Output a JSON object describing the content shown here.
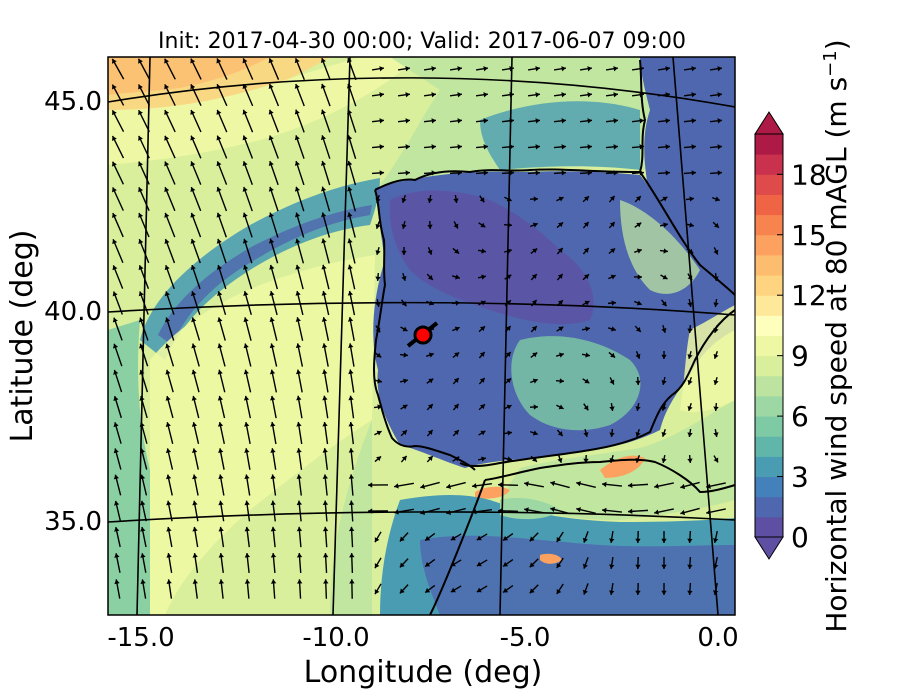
{
  "title": "Init: 2017-04-30 00:00; Valid: 2017-06-07 09:00",
  "x_axis": {
    "label": "Longitude (deg)",
    "ticks": [
      {
        "value": -15.0,
        "label": "-15.0"
      },
      {
        "value": -10.0,
        "label": "-10.0"
      },
      {
        "value": -5.0,
        "label": "-5.0"
      },
      {
        "value": 0.0,
        "label": "0.0"
      }
    ]
  },
  "y_axis": {
    "label": "Latitude (deg)",
    "ticks": [
      {
        "value": 35.0,
        "label": "35.0"
      },
      {
        "value": 40.0,
        "label": "40.0"
      },
      {
        "value": 45.0,
        "label": "45.0"
      }
    ]
  },
  "colorbar": {
    "label_main": "Horizontal wind speed at 80 mAGL (m s",
    "label_exp": "−1",
    "label_close": ")",
    "min": 0,
    "max": 20,
    "ticks": [
      {
        "value": 0,
        "label": "0"
      },
      {
        "value": 3,
        "label": "3"
      },
      {
        "value": 6,
        "label": "6"
      },
      {
        "value": 9,
        "label": "9"
      },
      {
        "value": 12,
        "label": "12"
      },
      {
        "value": 15,
        "label": "15"
      },
      {
        "value": 18,
        "label": "18"
      }
    ],
    "colors": [
      "#5e4fa2",
      "#4f67ae",
      "#4480b9",
      "#4a9cb3",
      "#5fb6a9",
      "#7dcaa4",
      "#9dd7a4",
      "#bce4a0",
      "#d9ef9b",
      "#eef8a4",
      "#fefebd",
      "#fee99a",
      "#fed480",
      "#fdbd6f",
      "#fca15f",
      "#f7844e",
      "#ee6445",
      "#df4b4b",
      "#c9314c",
      "#ad1a45"
    ],
    "extend": "both"
  },
  "marker": {
    "lon": -7.6,
    "lat": 39.3,
    "color": "#ff0000"
  }
}
